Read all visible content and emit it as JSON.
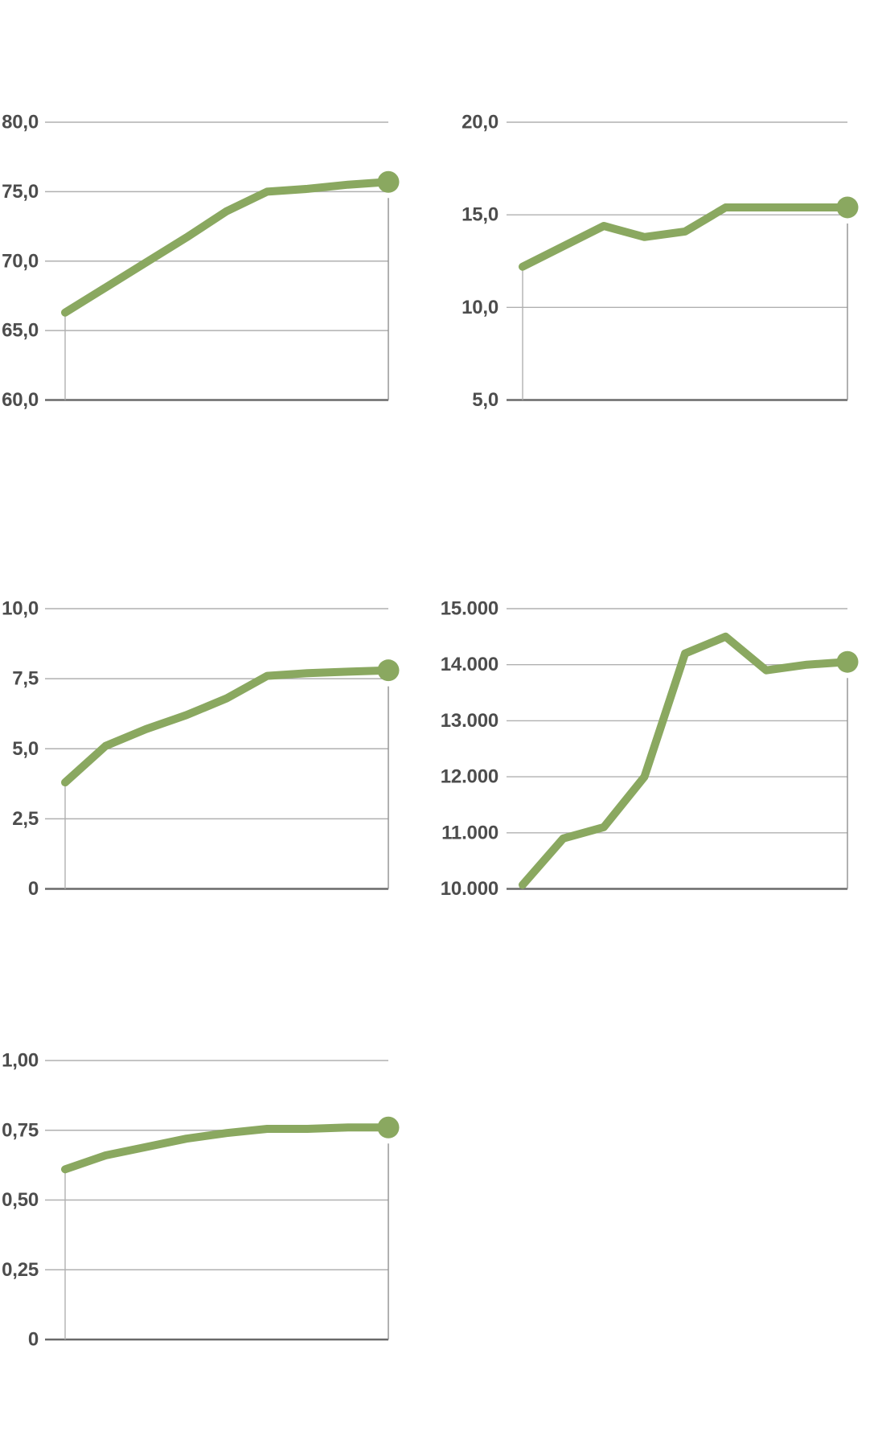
{
  "page": {
    "background": "#ffffff"
  },
  "style": {
    "line_color": "#8aa860",
    "dot_color": "#8aa860",
    "grid_color": "#b0b0b0",
    "baseline_color": "#6a6a6a",
    "drop_line_color": "#909090",
    "axis_line_color": "#b0b0b0",
    "tick_label_color": "#4d4d4d"
  },
  "chart_data": [
    {
      "type": "line",
      "position": "top-left",
      "y_ticks": [
        "80,0",
        "75,0",
        "70,0",
        "65,0",
        "60,0"
      ],
      "ylim": [
        60,
        80
      ],
      "values": [
        66.3,
        68.1,
        69.9,
        71.7,
        73.6,
        75.0,
        75.2,
        75.5,
        75.7
      ],
      "grid": true,
      "legend": "none",
      "last_point_marker": true
    },
    {
      "type": "line",
      "position": "top-right",
      "y_ticks": [
        "20,0",
        "15,0",
        "10,0",
        "5,0"
      ],
      "ylim": [
        5,
        20
      ],
      "values": [
        12.2,
        13.3,
        14.4,
        13.8,
        14.1,
        15.4,
        15.4,
        15.4,
        15.4
      ],
      "grid": true,
      "legend": "none",
      "last_point_marker": true
    },
    {
      "type": "line",
      "position": "middle-left",
      "y_ticks": [
        "10,0",
        "7,5",
        "5,0",
        "2,5",
        "0"
      ],
      "ylim": [
        0,
        10
      ],
      "values": [
        3.8,
        5.1,
        5.7,
        6.2,
        6.8,
        7.6,
        7.7,
        7.75,
        7.8
      ],
      "grid": true,
      "legend": "none",
      "last_point_marker": true
    },
    {
      "type": "line",
      "position": "middle-right",
      "y_ticks": [
        "15.000",
        "14.000",
        "13.000",
        "12.000",
        "11.000",
        "10.000"
      ],
      "ylim": [
        10000,
        15000
      ],
      "values": [
        10070,
        10900,
        11100,
        12000,
        14200,
        14500,
        13900,
        14000,
        14050
      ],
      "grid": true,
      "legend": "none",
      "last_point_marker": true
    },
    {
      "type": "line",
      "position": "bottom-left",
      "y_ticks": [
        "1,00",
        "0,75",
        "0,50",
        "0,25",
        "0"
      ],
      "ylim": [
        0,
        1
      ],
      "values": [
        0.61,
        0.66,
        0.69,
        0.72,
        0.74,
        0.755,
        0.755,
        0.76,
        0.76
      ],
      "grid": true,
      "legend": "none",
      "last_point_marker": true
    }
  ]
}
